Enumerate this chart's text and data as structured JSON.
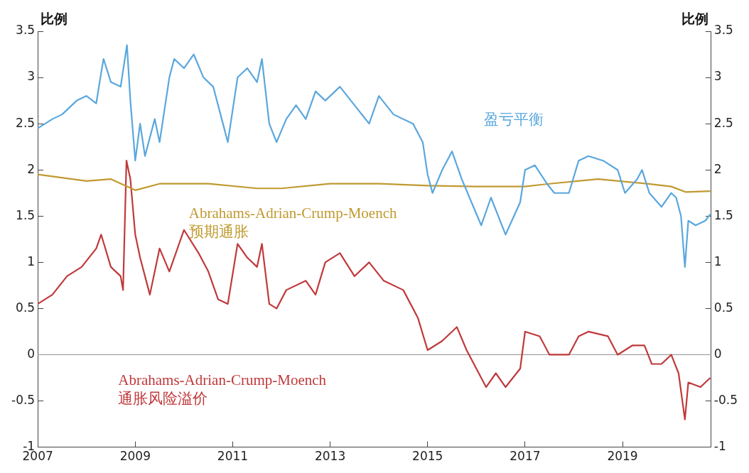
{
  "chart_data": {
    "type": "line",
    "ylabel": "比例",
    "y2label": "比例",
    "xlim": [
      2007,
      2020.82
    ],
    "xticks": [
      2007,
      2009,
      2011,
      2013,
      2015,
      2017,
      2019
    ],
    "ylim": [
      -1,
      3.5
    ],
    "yticks": [
      -1,
      -0.5,
      0,
      0.5,
      1,
      1.5,
      2,
      2.5,
      3,
      3.5
    ],
    "y2lim": [
      -1,
      3.5
    ],
    "y2ticks": [
      -1,
      -0.5,
      0,
      0.5,
      1,
      1.5,
      2,
      2.5,
      3,
      3.5
    ],
    "grid": false,
    "legend": false,
    "marker": "none",
    "line_style": "solid",
    "ref_lines": [
      {
        "axis": "y",
        "value": 0,
        "color": "#a0a0a0"
      }
    ],
    "series": [
      {
        "name": "盈亏平衡",
        "color": "#5aa7dd",
        "x": [
          2007.0,
          2007.3,
          2007.5,
          2007.8,
          2008.0,
          2008.2,
          2008.3,
          2008.35,
          2008.5,
          2008.7,
          2008.83,
          2008.9,
          2009.0,
          2009.1,
          2009.2,
          2009.4,
          2009.5,
          2009.7,
          2009.8,
          2010.0,
          2010.2,
          2010.4,
          2010.6,
          2010.8,
          2010.9,
          2011.1,
          2011.3,
          2011.5,
          2011.6,
          2011.75,
          2011.9,
          2012.1,
          2012.3,
          2012.5,
          2012.7,
          2012.9,
          2013.2,
          2013.5,
          2013.8,
          2014.0,
          2014.3,
          2014.7,
          2014.9,
          2015.0,
          2015.1,
          2015.3,
          2015.5,
          2015.7,
          2015.9,
          2016.1,
          2016.3,
          2016.6,
          2016.9,
          2017.0,
          2017.2,
          2017.45,
          2017.6,
          2017.9,
          2018.1,
          2018.3,
          2018.6,
          2018.9,
          2019.05,
          2019.3,
          2019.4,
          2019.55,
          2019.8,
          2020.0,
          2020.1,
          2020.2,
          2020.28,
          2020.35,
          2020.5,
          2020.7,
          2020.8
        ],
        "values": [
          2.45,
          2.55,
          2.6,
          2.75,
          2.8,
          2.72,
          3.05,
          3.2,
          2.95,
          2.9,
          3.35,
          2.75,
          2.1,
          2.5,
          2.15,
          2.55,
          2.3,
          3.0,
          3.2,
          3.1,
          3.25,
          3.0,
          2.9,
          2.5,
          2.3,
          3.0,
          3.1,
          2.95,
          3.2,
          2.5,
          2.3,
          2.55,
          2.7,
          2.55,
          2.85,
          2.75,
          2.9,
          2.7,
          2.5,
          2.8,
          2.6,
          2.5,
          2.3,
          1.95,
          1.75,
          2.0,
          2.2,
          1.9,
          1.65,
          1.4,
          1.7,
          1.3,
          1.65,
          2.0,
          2.05,
          1.85,
          1.75,
          1.75,
          2.1,
          2.15,
          2.1,
          2.0,
          1.75,
          1.9,
          2.0,
          1.75,
          1.6,
          1.75,
          1.7,
          1.5,
          0.95,
          1.45,
          1.4,
          1.45,
          1.52
        ]
      },
      {
        "name": "Abrahams-Adrian-Crump-Moench\n预期通胀",
        "color": "#c09a30",
        "x": [
          2007.0,
          2008.0,
          2008.5,
          2009.0,
          2009.5,
          2010.5,
          2011.5,
          2012.0,
          2013.0,
          2014.0,
          2015.0,
          2016.0,
          2017.0,
          2017.5,
          2018.5,
          2019.5,
          2020.0,
          2020.3,
          2020.8
        ],
        "values": [
          1.95,
          1.88,
          1.9,
          1.78,
          1.85,
          1.85,
          1.8,
          1.8,
          1.85,
          1.85,
          1.83,
          1.82,
          1.82,
          1.85,
          1.9,
          1.85,
          1.82,
          1.76,
          1.77
        ]
      },
      {
        "name": "Abrahams-Adrian-Crump-Moench\n通胀风险溢价",
        "color": "#c0393b",
        "x": [
          2007.0,
          2007.3,
          2007.6,
          2007.9,
          2008.2,
          2008.3,
          2008.5,
          2008.7,
          2008.75,
          2008.82,
          2008.9,
          2009.0,
          2009.1,
          2009.3,
          2009.5,
          2009.7,
          2010.0,
          2010.3,
          2010.5,
          2010.7,
          2010.9,
          2011.1,
          2011.3,
          2011.5,
          2011.6,
          2011.75,
          2011.9,
          2012.1,
          2012.5,
          2012.7,
          2012.9,
          2013.2,
          2013.5,
          2013.8,
          2014.1,
          2014.5,
          2014.8,
          2015.0,
          2015.3,
          2015.6,
          2015.8,
          2016.0,
          2016.2,
          2016.4,
          2016.6,
          2016.9,
          2017.0,
          2017.3,
          2017.5,
          2017.9,
          2018.1,
          2018.3,
          2018.7,
          2018.9,
          2019.2,
          2019.45,
          2019.6,
          2019.8,
          2020.0,
          2020.15,
          2020.28,
          2020.35,
          2020.6,
          2020.8
        ],
        "values": [
          0.55,
          0.65,
          0.85,
          0.95,
          1.15,
          1.3,
          0.95,
          0.85,
          0.7,
          2.1,
          1.9,
          1.3,
          1.05,
          0.65,
          1.15,
          0.9,
          1.35,
          1.1,
          0.9,
          0.6,
          0.55,
          1.2,
          1.05,
          0.95,
          1.2,
          0.55,
          0.5,
          0.7,
          0.8,
          0.65,
          1.0,
          1.1,
          0.85,
          1.0,
          0.8,
          0.7,
          0.4,
          0.05,
          0.15,
          0.3,
          0.05,
          -0.15,
          -0.35,
          -0.2,
          -0.35,
          -0.15,
          0.25,
          0.2,
          0.0,
          0.0,
          0.2,
          0.25,
          0.2,
          0.0,
          0.1,
          0.1,
          -0.1,
          -0.1,
          0.0,
          -0.2,
          -0.7,
          -0.3,
          -0.35,
          -0.25
        ]
      }
    ]
  }
}
